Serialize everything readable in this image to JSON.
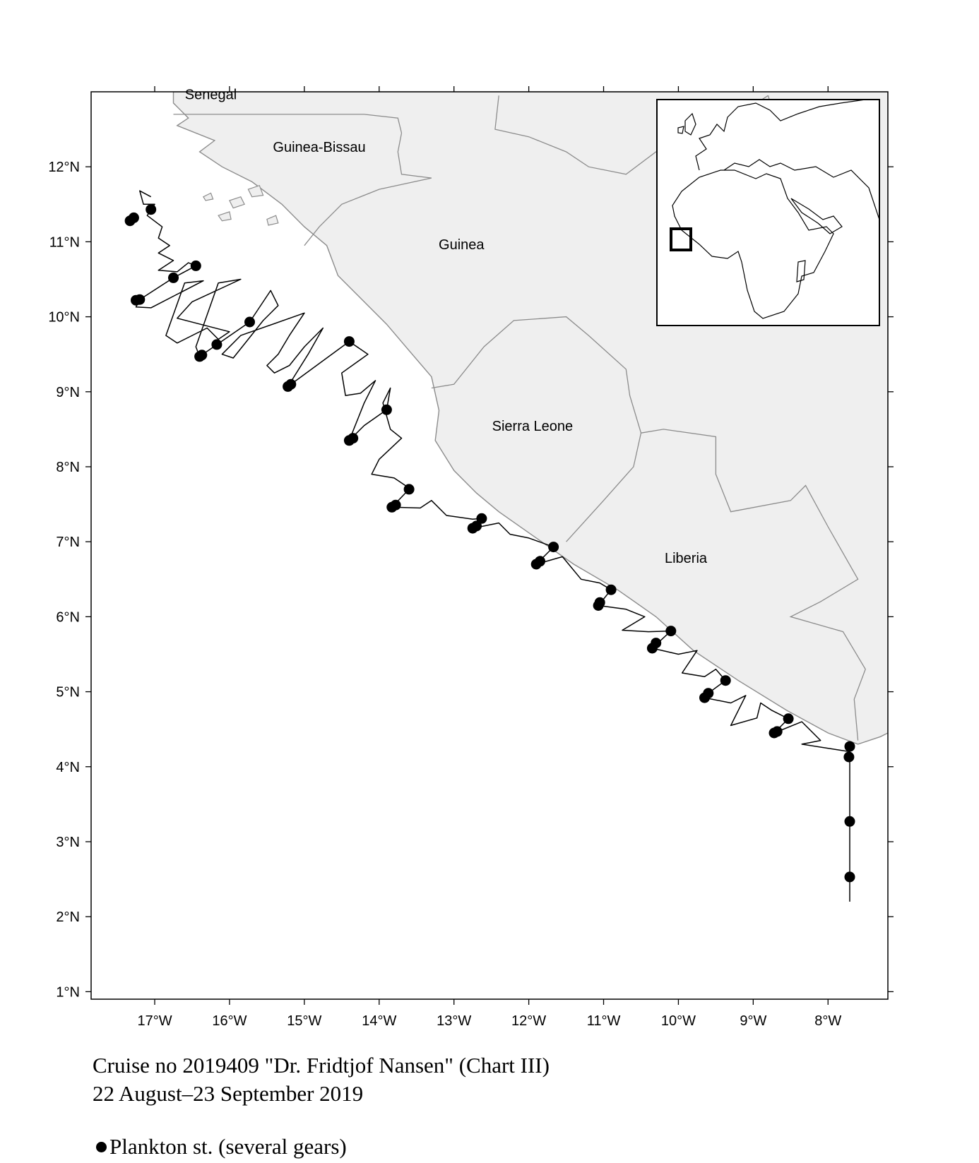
{
  "map": {
    "axes": {
      "lat_ticks": [
        "1°N",
        "2°N",
        "3°N",
        "4°N",
        "5°N",
        "6°N",
        "7°N",
        "8°N",
        "9°N",
        "10°N",
        "11°N",
        "12°N"
      ],
      "lon_ticks": [
        "17°W",
        "16°W",
        "15°W",
        "14°W",
        "13°W",
        "12°W",
        "11°W",
        "10°W",
        "9°W",
        "8°W"
      ],
      "lon_range": [
        -17.85,
        -7.2
      ],
      "lat_range": [
        0.9,
        13.0
      ]
    },
    "countries": [
      {
        "name": "Senegal",
        "lon": -16.25,
        "lat": 12.9
      },
      {
        "name": "Guinea-Bissau",
        "lon": -14.8,
        "lat": 12.2
      },
      {
        "name": "Guinea",
        "lon": -12.9,
        "lat": 10.9
      },
      {
        "name": "Sierra Leone",
        "lon": -11.95,
        "lat": 8.48
      },
      {
        "name": "Liberia",
        "lon": -9.9,
        "lat": 6.72
      }
    ],
    "colors": {
      "land": "#efefef",
      "border": "#8c8c8c",
      "track": "#000000",
      "station": "#000000"
    },
    "inset": {
      "description_icon": "world-locator-inset",
      "highlight": "study-area-box"
    }
  },
  "stations": [
    [
      -17.33,
      11.28
    ],
    [
      -17.28,
      11.32
    ],
    [
      -17.05,
      11.43
    ],
    [
      -16.45,
      10.68
    ],
    [
      -16.75,
      10.52
    ],
    [
      -17.25,
      10.22
    ],
    [
      -17.2,
      10.23
    ],
    [
      -15.73,
      9.93
    ],
    [
      -16.17,
      9.63
    ],
    [
      -16.4,
      9.47
    ],
    [
      -16.37,
      9.49
    ],
    [
      -14.4,
      9.67
    ],
    [
      -15.22,
      9.07
    ],
    [
      -15.18,
      9.1
    ],
    [
      -13.9,
      8.76
    ],
    [
      -14.4,
      8.35
    ],
    [
      -14.35,
      8.38
    ],
    [
      -13.6,
      7.7
    ],
    [
      -13.83,
      7.46
    ],
    [
      -13.78,
      7.49
    ],
    [
      -12.63,
      7.31
    ],
    [
      -12.75,
      7.18
    ],
    [
      -12.7,
      7.21
    ],
    [
      -11.67,
      6.93
    ],
    [
      -11.9,
      6.7
    ],
    [
      -11.85,
      6.74
    ],
    [
      -10.9,
      6.36
    ],
    [
      -11.07,
      6.15
    ],
    [
      -11.05,
      6.19
    ],
    [
      -10.1,
      5.81
    ],
    [
      -10.35,
      5.58
    ],
    [
      -10.3,
      5.65
    ],
    [
      -9.37,
      5.15
    ],
    [
      -9.6,
      4.98
    ],
    [
      -9.65,
      4.92
    ],
    [
      -8.53,
      4.64
    ],
    [
      -8.72,
      4.45
    ],
    [
      -8.68,
      4.47
    ],
    [
      -7.71,
      4.27
    ],
    [
      -7.72,
      4.13
    ],
    [
      -7.71,
      3.27
    ],
    [
      -7.71,
      2.53
    ]
  ],
  "track": [
    [
      -17.05,
      11.6
    ],
    [
      -17.2,
      11.68
    ],
    [
      -17.15,
      11.5
    ],
    [
      -17.0,
      11.5
    ],
    [
      -17.1,
      11.35
    ],
    [
      -16.9,
      11.2
    ],
    [
      -16.95,
      11.05
    ],
    [
      -16.8,
      10.95
    ],
    [
      -16.95,
      10.85
    ],
    [
      -16.75,
      10.75
    ],
    [
      -16.95,
      10.62
    ],
    [
      -16.7,
      10.6
    ],
    [
      -16.55,
      10.72
    ],
    [
      -16.45,
      10.68
    ],
    [
      -16.75,
      10.52
    ],
    [
      -17.2,
      10.23
    ],
    [
      -17.25,
      10.13
    ],
    [
      -17.05,
      10.12
    ],
    [
      -16.35,
      10.48
    ],
    [
      -16.6,
      10.45
    ],
    [
      -16.85,
      9.75
    ],
    [
      -16.7,
      9.65
    ],
    [
      -16.3,
      9.85
    ],
    [
      -16.15,
      9.7
    ],
    [
      -16.0,
      9.8
    ],
    [
      -16.7,
      9.98
    ],
    [
      -16.5,
      10.2
    ],
    [
      -15.85,
      10.5
    ],
    [
      -16.15,
      10.45
    ],
    [
      -16.45,
      9.6
    ],
    [
      -16.4,
      9.47
    ],
    [
      -15.73,
      9.93
    ],
    [
      -15.45,
      10.35
    ],
    [
      -15.35,
      10.15
    ],
    [
      -15.55,
      9.95
    ],
    [
      -15.75,
      9.7
    ],
    [
      -15.95,
      9.45
    ],
    [
      -16.1,
      9.5
    ],
    [
      -15.85,
      9.75
    ],
    [
      -15.0,
      10.05
    ],
    [
      -15.2,
      9.75
    ],
    [
      -15.35,
      9.5
    ],
    [
      -15.5,
      9.35
    ],
    [
      -15.4,
      9.25
    ],
    [
      -15.2,
      9.35
    ],
    [
      -15.0,
      9.6
    ],
    [
      -14.75,
      9.85
    ],
    [
      -14.95,
      9.5
    ],
    [
      -15.22,
      9.07
    ],
    [
      -14.4,
      9.67
    ],
    [
      -14.15,
      9.5
    ],
    [
      -14.5,
      9.25
    ],
    [
      -14.45,
      8.95
    ],
    [
      -14.25,
      8.98
    ],
    [
      -14.05,
      9.15
    ],
    [
      -14.2,
      8.85
    ],
    [
      -14.4,
      8.35
    ],
    [
      -14.2,
      8.55
    ],
    [
      -13.9,
      8.76
    ],
    [
      -13.85,
      9.05
    ],
    [
      -13.95,
      8.85
    ],
    [
      -13.85,
      8.5
    ],
    [
      -13.7,
      8.38
    ],
    [
      -14.0,
      8.1
    ],
    [
      -14.1,
      7.9
    ],
    [
      -13.8,
      7.85
    ],
    [
      -13.65,
      7.75
    ],
    [
      -13.6,
      7.7
    ],
    [
      -13.83,
      7.46
    ],
    [
      -13.45,
      7.45
    ],
    [
      -13.3,
      7.55
    ],
    [
      -13.1,
      7.35
    ],
    [
      -12.75,
      7.3
    ],
    [
      -12.63,
      7.31
    ],
    [
      -12.75,
      7.18
    ],
    [
      -12.4,
      7.25
    ],
    [
      -12.25,
      7.1
    ],
    [
      -12.0,
      7.05
    ],
    [
      -11.67,
      6.93
    ],
    [
      -11.9,
      6.7
    ],
    [
      -11.55,
      6.8
    ],
    [
      -11.3,
      6.5
    ],
    [
      -11.05,
      6.45
    ],
    [
      -10.9,
      6.36
    ],
    [
      -11.07,
      6.15
    ],
    [
      -10.7,
      6.1
    ],
    [
      -10.45,
      6.0
    ],
    [
      -10.75,
      5.82
    ],
    [
      -10.4,
      5.8
    ],
    [
      -10.1,
      5.81
    ],
    [
      -10.35,
      5.58
    ],
    [
      -10.0,
      5.5
    ],
    [
      -9.75,
      5.55
    ],
    [
      -9.95,
      5.25
    ],
    [
      -9.65,
      5.2
    ],
    [
      -9.5,
      5.3
    ],
    [
      -9.37,
      5.15
    ],
    [
      -9.6,
      4.98
    ],
    [
      -9.65,
      4.92
    ],
    [
      -9.3,
      4.85
    ],
    [
      -9.1,
      4.95
    ],
    [
      -9.3,
      4.55
    ],
    [
      -8.95,
      4.65
    ],
    [
      -8.9,
      4.85
    ],
    [
      -8.75,
      4.75
    ],
    [
      -8.53,
      4.64
    ],
    [
      -8.72,
      4.45
    ],
    [
      -8.35,
      4.6
    ],
    [
      -8.1,
      4.35
    ],
    [
      -8.35,
      4.3
    ],
    [
      -7.71,
      4.2
    ],
    [
      -7.71,
      2.2
    ]
  ],
  "caption": {
    "line1": "Cruise no 2019409  \"Dr. Fridtjof Nansen\" (Chart III)",
    "line2": "22 August–23 September 2019"
  },
  "legend": {
    "label": "Plankton st. (several gears)"
  }
}
